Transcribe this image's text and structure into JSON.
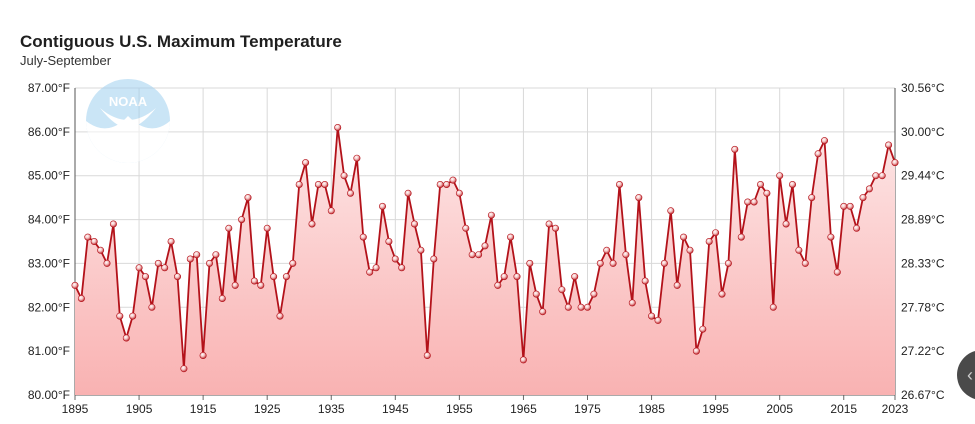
{
  "chart_data": {
    "type": "line",
    "title": "Contiguous U.S. Maximum Temperature",
    "subtitle": "July-September",
    "xlabel": "",
    "ylabel": "",
    "x": [
      1895,
      1896,
      1897,
      1898,
      1899,
      1900,
      1901,
      1902,
      1903,
      1904,
      1905,
      1906,
      1907,
      1908,
      1909,
      1910,
      1911,
      1912,
      1913,
      1914,
      1915,
      1916,
      1917,
      1918,
      1919,
      1920,
      1921,
      1922,
      1923,
      1924,
      1925,
      1926,
      1927,
      1928,
      1929,
      1930,
      1931,
      1932,
      1933,
      1934,
      1935,
      1936,
      1937,
      1938,
      1939,
      1940,
      1941,
      1942,
      1943,
      1944,
      1945,
      1946,
      1947,
      1948,
      1949,
      1950,
      1951,
      1952,
      1953,
      1954,
      1955,
      1956,
      1957,
      1958,
      1959,
      1960,
      1961,
      1962,
      1963,
      1964,
      1965,
      1966,
      1967,
      1968,
      1969,
      1970,
      1971,
      1972,
      1973,
      1974,
      1975,
      1976,
      1977,
      1978,
      1979,
      1980,
      1981,
      1982,
      1983,
      1984,
      1985,
      1986,
      1987,
      1988,
      1989,
      1990,
      1991,
      1992,
      1993,
      1994,
      1995,
      1996,
      1997,
      1998,
      1999,
      2000,
      2001,
      2002,
      2003,
      2004,
      2005,
      2006,
      2007,
      2008,
      2009,
      2010,
      2011,
      2012,
      2013,
      2014,
      2015,
      2016,
      2017,
      2018,
      2019,
      2020,
      2021,
      2022,
      2023
    ],
    "series": [
      {
        "values": [
          82.5,
          82.2,
          83.6,
          83.5,
          83.3,
          83.0,
          83.9,
          81.8,
          81.3,
          81.8,
          82.9,
          82.7,
          82.0,
          83.0,
          82.9,
          83.5,
          82.7,
          80.6,
          83.1,
          83.2,
          80.9,
          83.0,
          83.2,
          82.2,
          83.8,
          82.5,
          84.0,
          84.5,
          82.6,
          82.5,
          83.8,
          82.7,
          81.8,
          82.7,
          83.0,
          84.8,
          85.3,
          83.9,
          84.8,
          84.8,
          84.2,
          86.1,
          85.0,
          84.6,
          85.4,
          83.6,
          82.8,
          82.9,
          84.3,
          83.5,
          83.1,
          82.9,
          84.6,
          83.9,
          83.3,
          80.9,
          83.1,
          84.8,
          84.8,
          84.9,
          84.6,
          83.8,
          83.2,
          83.2,
          83.4,
          84.1,
          82.5,
          82.7,
          83.6,
          82.7,
          80.8,
          83.0,
          82.3,
          81.9,
          83.9,
          83.8,
          82.4,
          82.0,
          82.7,
          82.0,
          82.0,
          82.3,
          83.0,
          83.3,
          83.0,
          84.8,
          83.2,
          82.1,
          84.5,
          82.6,
          81.8,
          81.7,
          83.0,
          84.2,
          82.5,
          83.6,
          83.3,
          81.0,
          81.5,
          83.5,
          83.7,
          82.3,
          83.0,
          85.6,
          83.6,
          84.4,
          84.4,
          84.8,
          84.6,
          82.0,
          85.0,
          83.9,
          84.8,
          83.3,
          83.0,
          84.5,
          85.5,
          85.8,
          83.6,
          82.8,
          84.3,
          84.3,
          83.8,
          84.5,
          84.7,
          85.0,
          85.0,
          85.7,
          85.3
        ]
      }
    ],
    "ylim": [
      80.0,
      87.0
    ],
    "xlim": [
      1895,
      2023
    ],
    "y_ticks": [
      "80.00°F",
      "81.00°F",
      "82.00°F",
      "83.00°F",
      "84.00°F",
      "85.00°F",
      "86.00°F",
      "87.00°F"
    ],
    "y2_ticks": [
      "26.67°C",
      "27.22°C",
      "27.78°C",
      "28.33°C",
      "28.89°C",
      "29.44°C",
      "30.00°C",
      "30.56°C"
    ],
    "x_ticks": [
      "1895",
      "1905",
      "1915",
      "1925",
      "1935",
      "1945",
      "1955",
      "1965",
      "1975",
      "1985",
      "1995",
      "2005",
      "2015",
      "2023"
    ],
    "grid": true,
    "colors": {
      "line": "#b3121a",
      "area_top": "#fde6e6",
      "area_bottom": "#f9b2b2",
      "grid": "#d9d9d9"
    }
  },
  "logo": {
    "text": "NOAA"
  },
  "icons": {
    "float_button": "chevron-icon"
  }
}
